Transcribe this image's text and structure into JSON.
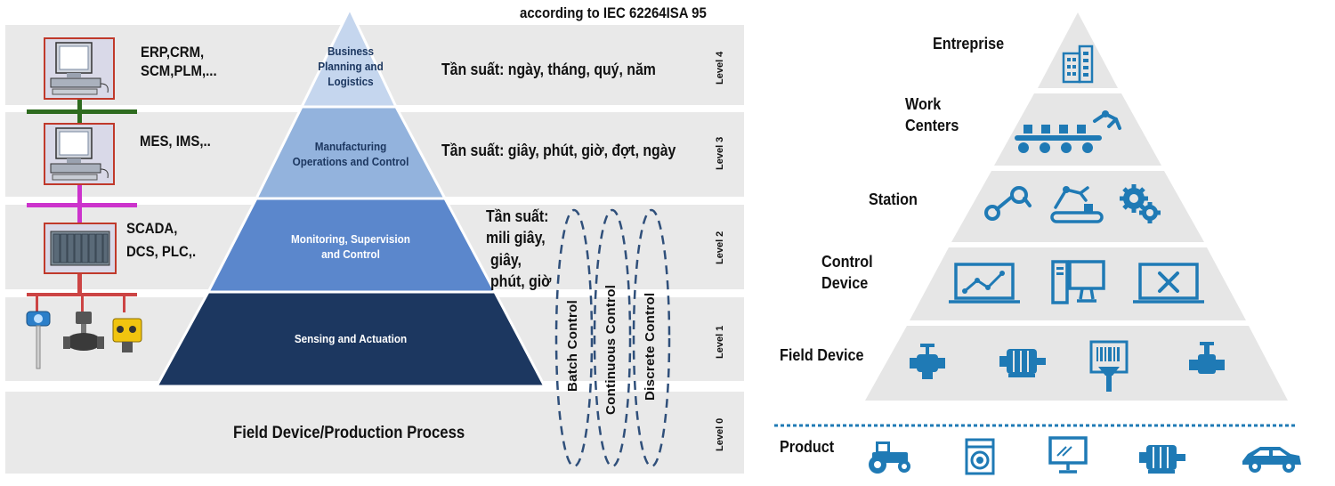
{
  "left": {
    "standard_note": "according to IEC 62264ISA 95",
    "levels": [
      {
        "level": "Level 4",
        "system": "ERP,CRM,\nSCM,PLM,...",
        "pyramid": "Business\nPlanning and\nLogistics",
        "frequency": "Tần suất: ngày, tháng, quý, năm"
      },
      {
        "level": "Level 3",
        "system": "MES, IMS,..",
        "pyramid": "Manufacturing\nOperations and Control",
        "frequency": "Tần suất: giây, phút, giờ, đợt, ngày"
      },
      {
        "level": "Level 2",
        "system": "SCADA,\nDCS, PLC,.",
        "pyramid": "Monitoring, Supervision\nand Control",
        "frequency_lines": [
          "Tần suất:",
          "mili giây,",
          "giây,",
          "phút, giờ"
        ]
      },
      {
        "level": "Level 1",
        "pyramid": "Sensing and Actuation"
      },
      {
        "level": "Level 0",
        "base": "Field Device/Production Process"
      }
    ],
    "controls": [
      "Batch Control",
      "Continuous Control",
      "Discrete Control"
    ],
    "colors": {
      "band": "#e9e9e9",
      "level4": "#c5d6ee",
      "level3": "#93b3dd",
      "level2": "#5b87cc",
      "level1": "#1c3760",
      "bus_level4": "#2e6b1f",
      "bus_level3": "#cc33cc",
      "bus_level2": "#cc4444",
      "control_ellipse": "#2f4f7a"
    }
  },
  "right": {
    "tiers": [
      {
        "label": "Entreprise",
        "icons": [
          "building-icon"
        ]
      },
      {
        "label": "Work\nCenters",
        "icons": [
          "conveyor-robot-icon"
        ]
      },
      {
        "label": "Station",
        "icons": [
          "robot-arm-icon",
          "robot-conveyor-icon",
          "gears-icon"
        ]
      },
      {
        "label": "Control\nDevice",
        "icons": [
          "laptop-chart-icon",
          "desktop-computer-icon",
          "laptop-tools-icon"
        ]
      },
      {
        "label": "Field Device",
        "icons": [
          "valve-icon",
          "motor-icon",
          "barcode-scanner-icon",
          "pipe-valve-icon"
        ]
      }
    ],
    "product_label": "Product",
    "product_icons": [
      "tractor-icon",
      "washing-machine-icon",
      "monitor-icon",
      "motor-icon",
      "car-icon"
    ],
    "colors": {
      "tier": "#e6e6e6",
      "icon": "#1f7ab5",
      "dotted_line": "#1f7ab5"
    }
  }
}
